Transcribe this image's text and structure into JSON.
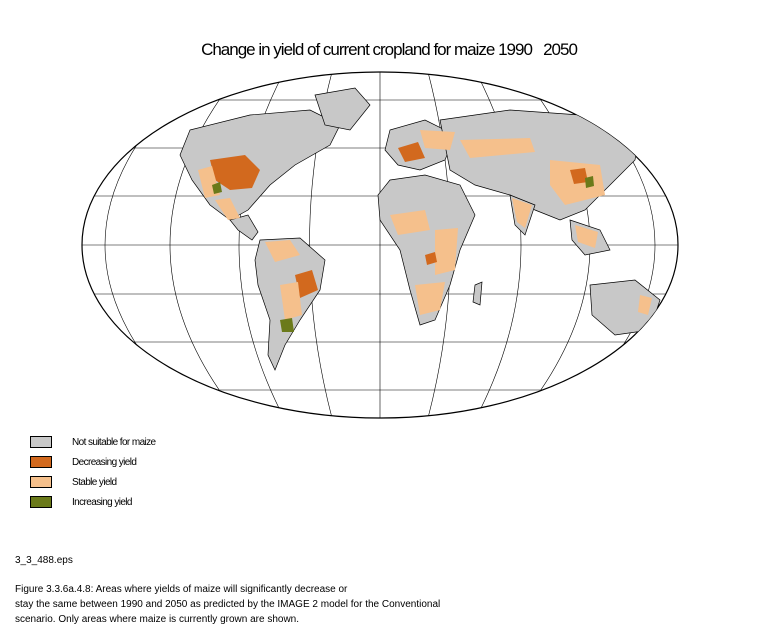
{
  "title": "Change in yield of current cropland for maize 1990   2050",
  "legend": {
    "items": [
      {
        "label": "Not suitable for maize",
        "color": "#c8c8c8"
      },
      {
        "label": "Decreasing yield",
        "color": "#d2691e"
      },
      {
        "label": "Stable yield",
        "color": "#f5c08c"
      },
      {
        "label": "Increasing yield",
        "color": "#6b7a1a"
      }
    ]
  },
  "file_name": "3_3_488.eps",
  "caption": {
    "line1": "Figure 3.3.6a.4.8: Areas where yields of maize will significantly decrease or",
    "line2": "stay the same between 1990 and 2050 as predicted by the IMAGE 2 model for the Conventional",
    "line3": "scenario. Only areas where maize is currently grown are shown."
  },
  "colors": {
    "ocean": "#ffffff",
    "land": "#c8c8c8",
    "border": "#000000"
  }
}
